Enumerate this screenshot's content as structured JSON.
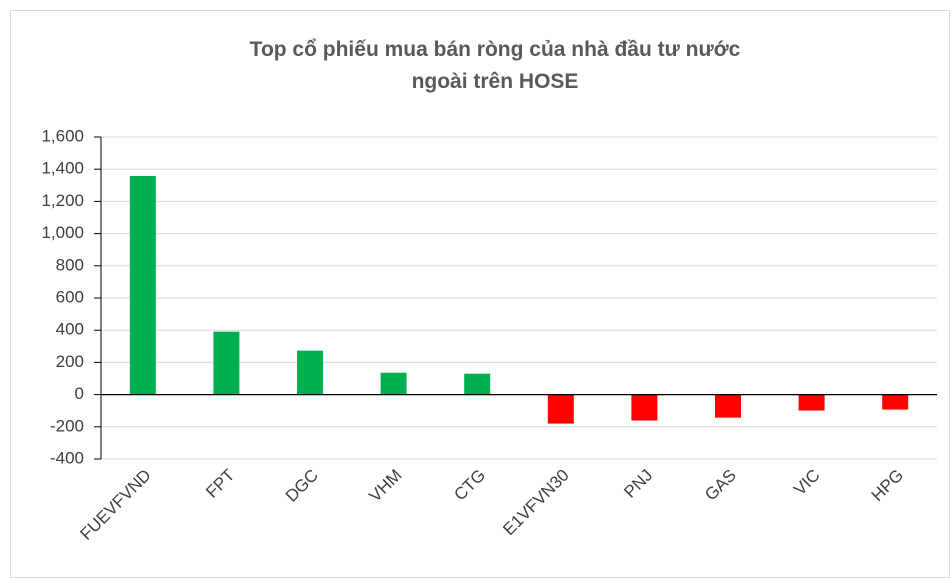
{
  "chart_data": {
    "type": "bar",
    "title": "Top cổ phiếu mua bán ròng của nhà đầu tư nước ngoài trên HOSE",
    "categories": [
      "FUEVFVND",
      "FPT",
      "DGC",
      "VHM",
      "CTG",
      "E1VFVN30",
      "PNJ",
      "GAS",
      "VIC",
      "HPG"
    ],
    "values": [
      1358,
      391,
      273,
      136,
      130,
      -180,
      -161,
      -143,
      -99,
      -93
    ],
    "colors": [
      "#00b050",
      "#00b050",
      "#00b050",
      "#00b050",
      "#00b050",
      "#ff0000",
      "#ff0000",
      "#ff0000",
      "#ff0000",
      "#ff0000"
    ],
    "ylim": [
      -400,
      1600
    ],
    "yticks": [
      -400,
      -200,
      0,
      200,
      400,
      600,
      800,
      {
        "value": 1000,
        "label": "1,000"
      },
      {
        "value": 1200,
        "label": "1,200"
      },
      {
        "value": 1400,
        "label": "1,400"
      },
      {
        "value": 1600,
        "label": "1,600"
      }
    ],
    "grid": true
  }
}
